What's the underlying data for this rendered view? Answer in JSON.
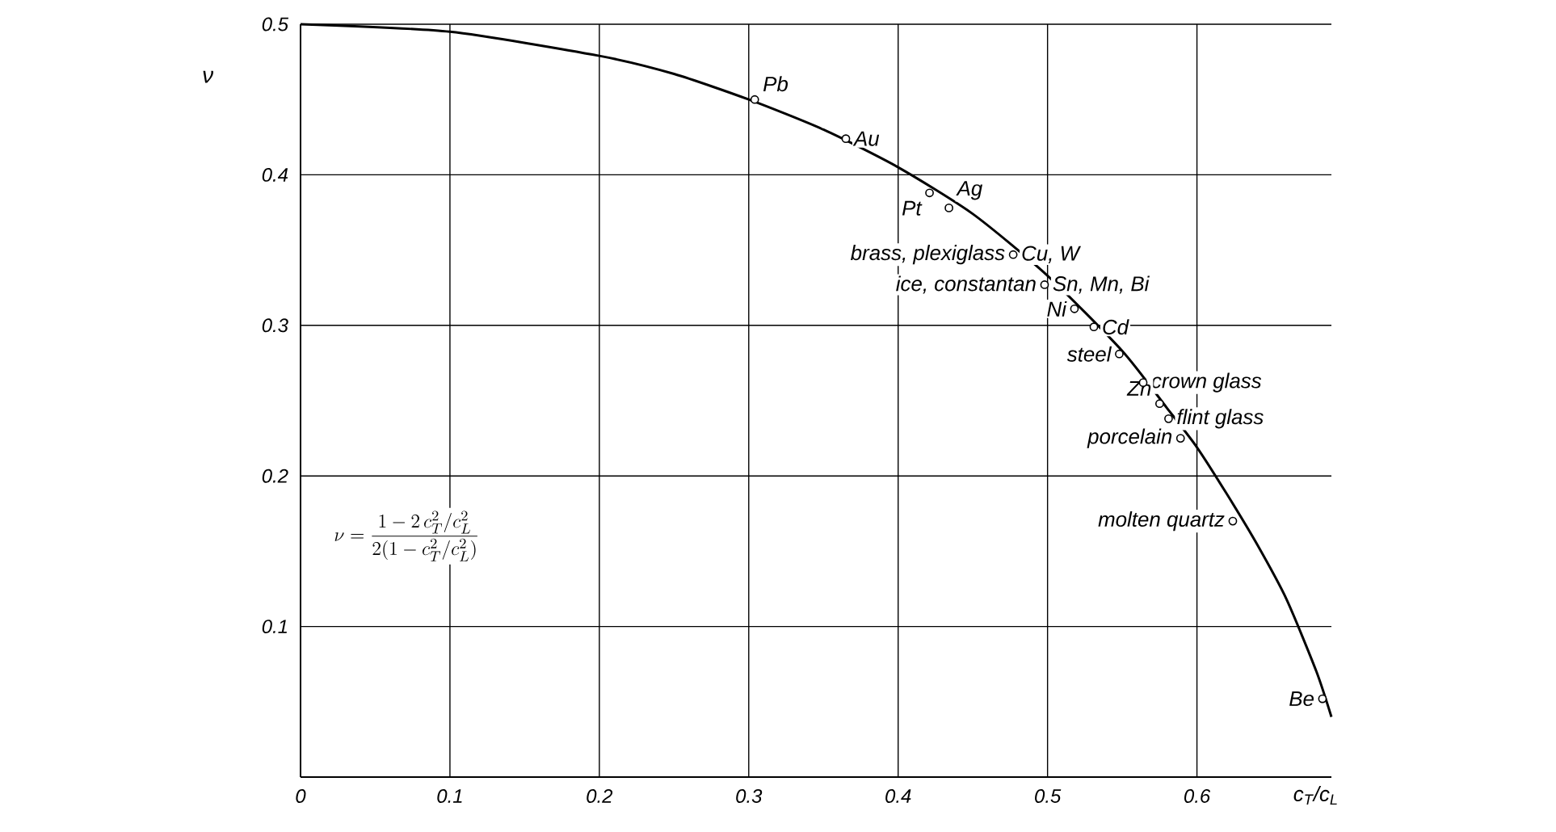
{
  "chart_data": {
    "type": "line",
    "xlabel": "c$_{T}$/c$_{L}$",
    "ylabel": "ν",
    "xlim": [
      0,
      0.69
    ],
    "ylim": [
      0,
      0.5
    ],
    "xticks": [
      0,
      0.1,
      0.2,
      0.3,
      0.4,
      0.5,
      0.6
    ],
    "yticks": [
      {
        "value": 0,
        "label": null
      },
      0.1,
      0.2,
      0.3,
      0.4,
      0.5
    ],
    "grid": true,
    "series": [
      {
        "color": "#000000",
        "line_style": "solid",
        "x": [
          0,
          0.1,
          0.2,
          0.25,
          0.3,
          0.35,
          0.4,
          0.45,
          0.5,
          0.55,
          0.58,
          0.6,
          0.62,
          0.64,
          0.66,
          0.68,
          0.69
        ],
        "values": [
          0.5,
          0.495,
          0.479,
          0.467,
          0.45,
          0.43,
          0.405,
          0.374,
          0.333,
          0.283,
          0.245,
          0.219,
          0.188,
          0.155,
          0.118,
          0.07,
          0.04
        ]
      },
      {
        "type": "scatter",
        "color": "#000000",
        "marker": "circle",
        "x": [
          0.304,
          0.365,
          0.421,
          0.434,
          0.477,
          0.498,
          0.518,
          0.531,
          0.548,
          0.564,
          0.575,
          0.581,
          0.589,
          0.624,
          0.684
        ],
        "values": [
          0.45,
          0.424,
          0.388,
          0.378,
          0.347,
          0.327,
          0.311,
          0.299,
          0.281,
          0.262,
          0.248,
          0.238,
          0.225,
          0.17,
          0.052
        ]
      }
    ],
    "annotations": [
      {
        "text": "Pb",
        "x": 0.304,
        "y": 0.45
      },
      {
        "text": "Au",
        "x": 0.365,
        "y": 0.424
      },
      {
        "text": "Pt",
        "x": 0.421,
        "y": 0.388
      },
      {
        "text": "Ag",
        "x": 0.434,
        "y": 0.378
      },
      {
        "text": "brass, plexiglass",
        "x": 0.477,
        "y": 0.347
      },
      {
        "text": "Cu, W",
        "x": 0.477,
        "y": 0.347
      },
      {
        "text": "ice, constantan",
        "x": 0.498,
        "y": 0.327
      },
      {
        "text": "Sn, Mn, Bi",
        "x": 0.498,
        "y": 0.327
      },
      {
        "text": "Ni",
        "x": 0.518,
        "y": 0.311
      },
      {
        "text": "Cd",
        "x": 0.531,
        "y": 0.299
      },
      {
        "text": "steel",
        "x": 0.548,
        "y": 0.281
      },
      {
        "text": "crown glass",
        "x": 0.564,
        "y": 0.262
      },
      {
        "text": "Zn",
        "x": 0.575,
        "y": 0.248
      },
      {
        "text": "flint glass",
        "x": 0.581,
        "y": 0.238
      },
      {
        "text": "porcelain",
        "x": 0.589,
        "y": 0.225
      },
      {
        "text": "molten quartz",
        "x": 0.624,
        "y": 0.17
      },
      {
        "text": "Be",
        "x": 0.684,
        "y": 0.052
      },
      "\\nu = \\frac{1-2\\,c_T^2/c_L^2}{2(1-c_T^2/c_L^2)}"
    ]
  }
}
